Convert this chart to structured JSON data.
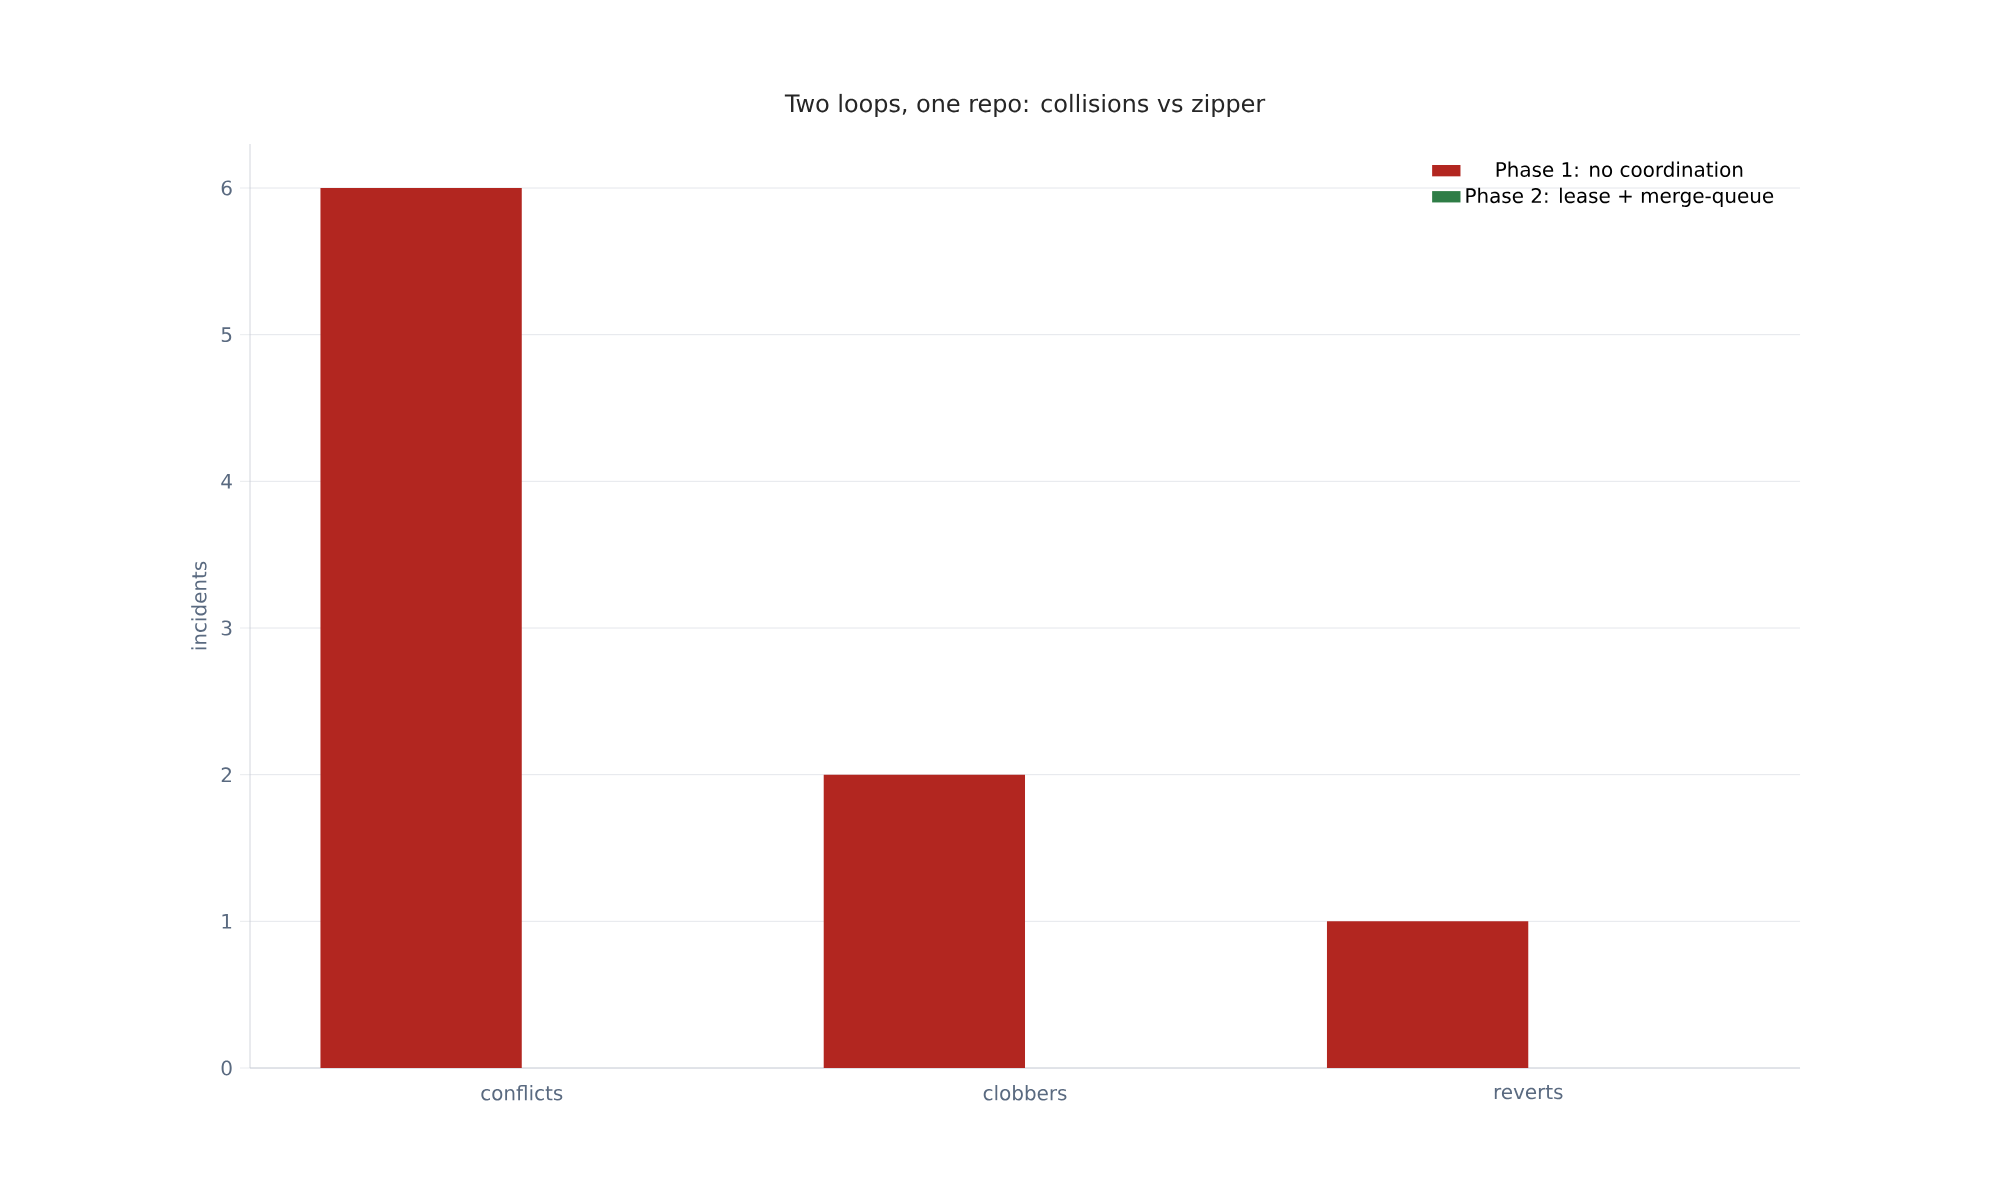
{
  "chart_data": {
    "type": "bar",
    "title": "Two loops, one repo: collisions vs zipper",
    "ylabel": "incidents",
    "categories": [
      "conflicts",
      "clobbers",
      "reverts"
    ],
    "series": [
      {
        "name": "Phase 1: no coordination",
        "color": "#b22620",
        "values": [
          6,
          2,
          1
        ]
      },
      {
        "name": "Phase 2: lease + merge-queue",
        "color": "#2e7d46",
        "values": [
          0,
          0,
          0
        ]
      }
    ],
    "ylim": [
      0,
      6.3
    ],
    "yticks": [
      0,
      1,
      2,
      3,
      4,
      5,
      6
    ],
    "grid": "y",
    "legend": "top right"
  }
}
